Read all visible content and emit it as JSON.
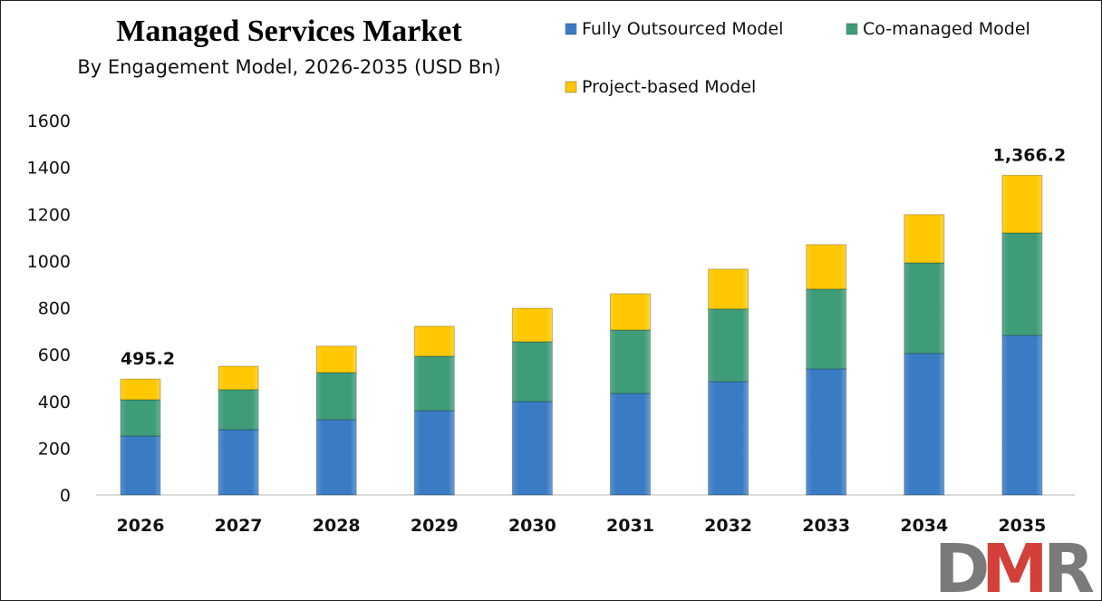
{
  "chart_data": {
    "type": "bar",
    "stacked": true,
    "title": "Managed Services Market",
    "subtitle": "By Engagement Model, 2026-2035 (USD Bn)",
    "xlabel": "",
    "ylabel": "",
    "ylim": [
      0,
      1600
    ],
    "yticks": [
      0,
      200,
      400,
      600,
      800,
      1000,
      1200,
      1400,
      1600
    ],
    "grid": false,
    "legend_position": "top-right",
    "categories": [
      "2026",
      "2027",
      "2028",
      "2029",
      "2030",
      "2031",
      "2032",
      "2033",
      "2034",
      "2035"
    ],
    "series": [
      {
        "name": "Fully Outsourced Model",
        "color": "#3A7CC4",
        "values": [
          252,
          279,
          322,
          360,
          399,
          434,
          484,
          539,
          605,
          682
        ]
      },
      {
        "name": "Co-managed Model",
        "color": "#3E9C78",
        "values": [
          155,
          171,
          201,
          233,
          256,
          271,
          311,
          341,
          387,
          438
        ]
      },
      {
        "name": "Project-based Model",
        "color": "#FFC800",
        "values": [
          88.2,
          100,
          113,
          128,
          143,
          155,
          170,
          190,
          206,
          246.2
        ]
      }
    ],
    "data_labels": [
      {
        "category": "2026",
        "text": "495.2"
      },
      {
        "category": "2035",
        "text": "1,366.2"
      }
    ]
  },
  "logo": {
    "text": "DMR",
    "colors": [
      "#7a7a7a",
      "#d3403a"
    ]
  }
}
